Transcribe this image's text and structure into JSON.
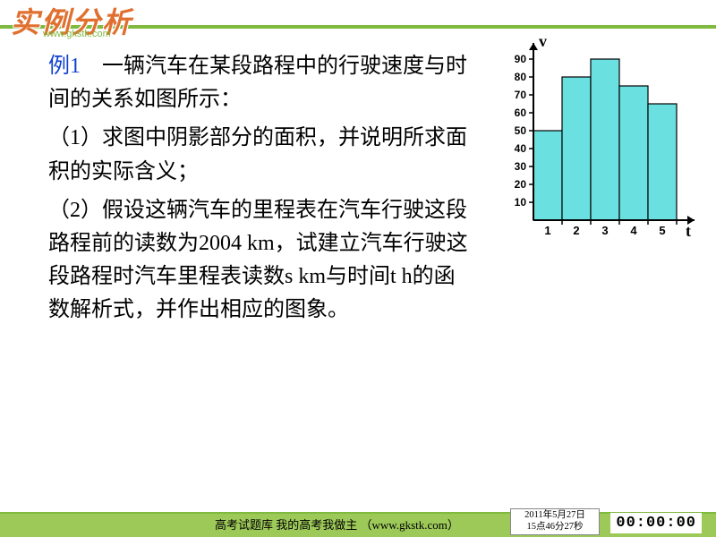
{
  "header": {
    "title": "实例分析",
    "sub": "www.gkstk.com"
  },
  "content": {
    "example_label": "例1",
    "intro": "　一辆汽车在某段路程中的行驶速度与时间的关系如图所示：",
    "q1": "（1）求图中阴影部分的面积，并说明所求面积的实际含义；",
    "q2": "（2）假设这辆汽车的里程表在汽车行驶这段路程前的读数为2004 km，试建立汽车行驶这段路程时汽车里程表读数s km与时间t  h的函数解析式，并作出相应的图象。"
  },
  "chart": {
    "type": "bar",
    "y_label": "v",
    "x_label": "t",
    "x_categories": [
      "1",
      "2",
      "3",
      "4",
      "5"
    ],
    "y_ticks": [
      10,
      20,
      30,
      40,
      50,
      60,
      70,
      80,
      90
    ],
    "bars": [
      {
        "x": 1,
        "height": 50
      },
      {
        "x": 2,
        "height": 80
      },
      {
        "x": 3,
        "height": 90
      },
      {
        "x": 4,
        "height": 75
      },
      {
        "x": 5,
        "height": 65
      }
    ],
    "bar_color": "#6be0e0",
    "bar_stroke": "#000000",
    "axis_color": "#000000",
    "tick_fontsize": 12,
    "label_fontsize": 18
  },
  "footer": {
    "text": "高考试题库  我的高考我做主 （www.gkstk.com）",
    "date_line1": "2011年5月27日",
    "date_line2": "15点46分27秒",
    "timer": "00:00:00"
  }
}
